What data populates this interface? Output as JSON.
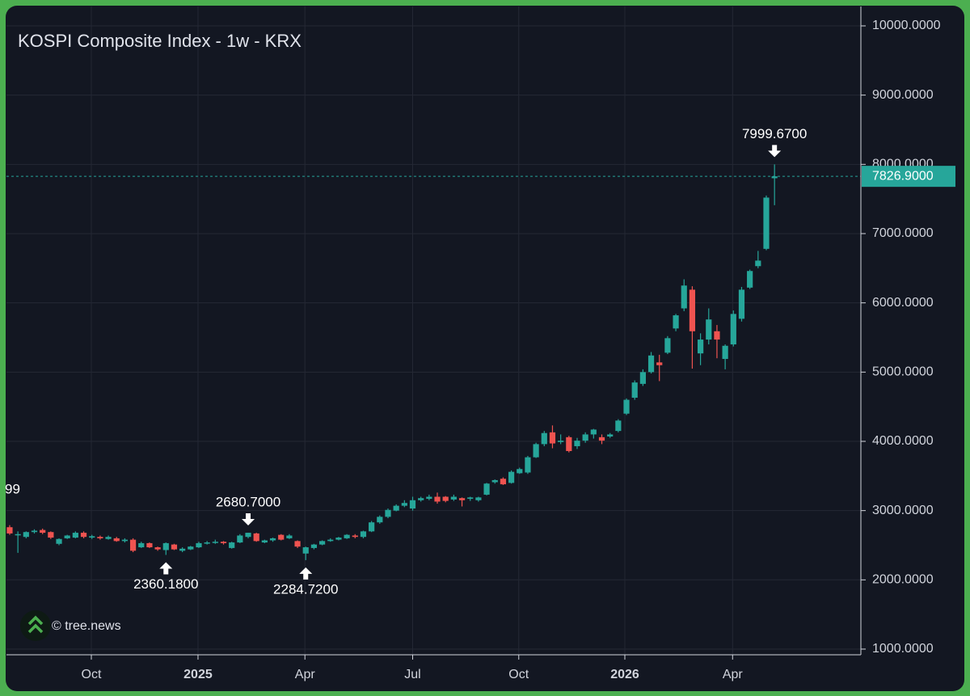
{
  "chart_data": {
    "type": "candlestick",
    "title": "KOSPI Composite Index - 1w - KRX",
    "watermark": "© tree.news",
    "edge_label": "99",
    "up_color": "#26a69a",
    "down_color": "#ef5350",
    "grid": true,
    "xlim": [
      -0.39,
      103.5
    ],
    "xticks": [
      {
        "value": 9.93,
        "label": "Oct"
      },
      {
        "value": 22.9,
        "label": "2025"
      },
      {
        "value": 35.9,
        "label": "Apr"
      },
      {
        "value": 49.0,
        "label": "Jul"
      },
      {
        "value": 61.9,
        "label": "Oct"
      },
      {
        "value": 74.8,
        "label": "2026"
      },
      {
        "value": 87.9,
        "label": "Apr"
      }
    ],
    "ylim": [
      918,
      10280
    ],
    "yticks": [
      {
        "value": 1000,
        "label": "1000.0000"
      },
      {
        "value": 2000,
        "label": "2000.0000"
      },
      {
        "value": 3000,
        "label": "3000.0000"
      },
      {
        "value": 4000,
        "label": "4000.0000"
      },
      {
        "value": 5000,
        "label": "5000.0000"
      },
      {
        "value": 6000,
        "label": "6000.0000"
      },
      {
        "value": 7000,
        "label": "7000.0000"
      },
      {
        "value": 8000,
        "label": "8000.0000"
      },
      {
        "value": 9000,
        "label": "9000.0000"
      },
      {
        "value": 10000,
        "label": "10000.0000"
      }
    ],
    "last_price": {
      "value": 7826.9,
      "label": "7826.9000"
    },
    "annotations": [
      {
        "value": 2360.18,
        "label": "2360.1800"
      },
      {
        "value": 2680.7,
        "label": "2680.7000"
      },
      {
        "value": 2284.72,
        "label": "2284.7200"
      },
      {
        "value": 7999.67,
        "label": "7999.6700"
      }
    ],
    "open": [
      2760,
      2650,
      2620,
      2690,
      2720,
      2690,
      2520,
      2600,
      2610,
      2680,
      2610,
      2620,
      2590,
      2600,
      2560,
      2580,
      2470,
      2530,
      2470,
      2430,
      2510,
      2420,
      2440,
      2470,
      2530,
      2540,
      2550,
      2460,
      2540,
      2620,
      2670,
      2540,
      2570,
      2650,
      2600,
      2560,
      2380,
      2460,
      2510,
      2560,
      2580,
      2600,
      2640,
      2620,
      2700,
      2830,
      2910,
      3000,
      3070,
      3030,
      3150,
      3170,
      3200,
      3200,
      3160,
      3180,
      3170,
      3150,
      3230,
      3410,
      3460,
      3400,
      3540,
      3550,
      3770,
      3960,
      4130,
      3990,
      4060,
      3930,
      4010,
      4100,
      4060,
      4070,
      4150,
      4400,
      4630,
      4830,
      5000,
      5140,
      5280,
      5630,
      5920,
      6190,
      5270,
      5470,
      5590,
      5190,
      5400,
      5770,
      6220,
      6530,
      6780,
      7800
    ],
    "high": [
      2790,
      2700,
      2700,
      2730,
      2740,
      2700,
      2600,
      2650,
      2700,
      2700,
      2650,
      2640,
      2640,
      2620,
      2600,
      2600,
      2550,
      2540,
      2480,
      2540,
      2520,
      2470,
      2490,
      2550,
      2560,
      2580,
      2560,
      2550,
      2660,
      2680.7,
      2680,
      2580,
      2610,
      2660,
      2660,
      2570,
      2480,
      2520,
      2570,
      2600,
      2620,
      2660,
      2660,
      2710,
      2850,
      2930,
      3030,
      3090,
      3150,
      3200,
      3200,
      3230,
      3260,
      3210,
      3230,
      3190,
      3200,
      3200,
      3400,
      3450,
      3480,
      3580,
      3620,
      3790,
      3980,
      4150,
      4230,
      4100,
      4080,
      4050,
      4130,
      4180,
      4100,
      4120,
      4320,
      4620,
      4880,
      5040,
      5290,
      5250,
      5520,
      5840,
      6340,
      6240,
      5560,
      5920,
      5680,
      5400,
      5890,
      6230,
      6480,
      6750,
      7550,
      7999.67
    ],
    "low": [
      2650,
      2390,
      2600,
      2670,
      2660,
      2590,
      2500,
      2590,
      2600,
      2600,
      2590,
      2580,
      2580,
      2550,
      2540,
      2400,
      2460,
      2460,
      2420,
      2360.18,
      2430,
      2400,
      2430,
      2460,
      2510,
      2520,
      2510,
      2450,
      2530,
      2600,
      2550,
      2530,
      2550,
      2570,
      2590,
      2460,
      2284.72,
      2440,
      2500,
      2550,
      2570,
      2590,
      2600,
      2600,
      2690,
      2810,
      2890,
      2990,
      3050,
      3000,
      3130,
      3150,
      3100,
      3120,
      3140,
      3060,
      3140,
      3130,
      3220,
      3390,
      3370,
      3390,
      3530,
      3530,
      3760,
      3930,
      3900,
      3960,
      3840,
      3890,
      3980,
      4040,
      3960,
      4050,
      4130,
      4380,
      4600,
      4800,
      4980,
      4870,
      5260,
      5590,
      5880,
      5050,
      5100,
      5400,
      5200,
      5040,
      5370,
      5730,
      6200,
      6500,
      6760,
      7410
    ],
    "close": [
      2670,
      2660,
      2690,
      2710,
      2680,
      2610,
      2590,
      2640,
      2680,
      2620,
      2630,
      2600,
      2620,
      2560,
      2580,
      2420,
      2530,
      2470,
      2440,
      2530,
      2440,
      2450,
      2480,
      2530,
      2540,
      2550,
      2530,
      2540,
      2640,
      2680,
      2560,
      2570,
      2600,
      2580,
      2640,
      2480,
      2470,
      2510,
      2560,
      2580,
      2610,
      2650,
      2620,
      2700,
      2830,
      2910,
      3010,
      3070,
      3110,
      3150,
      3180,
      3200,
      3130,
      3140,
      3200,
      3150,
      3190,
      3190,
      3390,
      3440,
      3380,
      3560,
      3600,
      3770,
      3960,
      4120,
      3970,
      4010,
      3860,
      4010,
      4100,
      4170,
      4010,
      4100,
      4300,
      4600,
      4850,
      5000,
      5240,
      5100,
      5490,
      5820,
      6250,
      5590,
      5470,
      5760,
      5470,
      5380,
      5840,
      6190,
      6460,
      6610,
      7520,
      7826.9
    ]
  }
}
